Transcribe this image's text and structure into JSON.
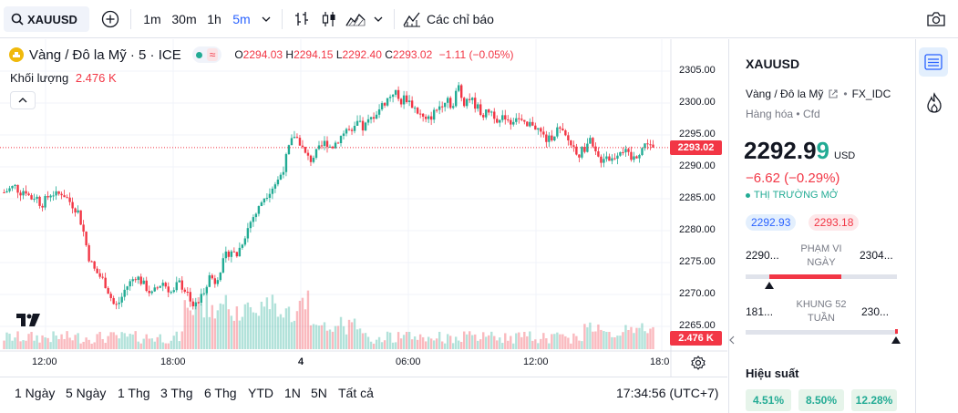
{
  "toolbar": {
    "symbol": "XAUUSD",
    "intervals": [
      "1m",
      "30m",
      "1h",
      "5m"
    ],
    "indicators_label": "Các chỉ báo"
  },
  "legend": {
    "name": "Vàng / Đô la Mỹ · 5 · ICE",
    "o_label": "O",
    "o": "2294.03",
    "h_label": "H",
    "h": "2294.15",
    "l_label": "L",
    "l": "2292.40",
    "c_label": "C",
    "c": "2293.02",
    "change": "−1.11 (−0.05%)",
    "volume_label": "Khối lượng",
    "volume": "2.476 K"
  },
  "price_axis": {
    "ticks": [
      "2305.00",
      "2300.00",
      "2295.00",
      "2290.00",
      "2285.00",
      "2280.00",
      "2275.00",
      "2270.00",
      "2265.00"
    ],
    "last_price": "2293.02",
    "volume_tag": "2.476 K"
  },
  "time_axis": {
    "ticks": [
      "12:00",
      "18:00",
      "4",
      "06:00",
      "12:00",
      "18:0"
    ]
  },
  "ranges": [
    "1 Ngày",
    "5 Ngày",
    "1 Thg",
    "3 Thg",
    "6 Thg",
    "YTD",
    "1N",
    "5N",
    "Tất cả"
  ],
  "clock": "17:34:56 (UTC+7)",
  "detail": {
    "symbol": "XAUUSD",
    "name": "Vàng / Đô la Mỹ",
    "exchange": "FX_IDC",
    "category": "Hàng hóa",
    "type": "Cfd",
    "price_main": "2292.9",
    "price_last": "9",
    "currency": "USD",
    "change": "−6.62 (−0.29%)",
    "market_status": "THỊ TRƯỜNG MỞ",
    "bid": "2292.93",
    "ask": "2293.18",
    "day_low": "2290...",
    "day_label1": "PHẠM VI",
    "day_label2": "NGÀY",
    "day_high": "2304...",
    "wk_low": "181...",
    "wk_label1": "KHUNG 52",
    "wk_label2": "TUẦN",
    "wk_high": "230...",
    "performance_title": "Hiệu suất",
    "perf": [
      "4.51%",
      "8.50%",
      "12.28%"
    ]
  },
  "colors": {
    "up": "#22ab94",
    "down": "#f23645",
    "accent": "#2962ff"
  },
  "chart_data": {
    "type": "candlestick",
    "x_ticks": [
      "12:00",
      "18:00",
      "4",
      "06:00",
      "12:00",
      "18:0"
    ],
    "ylim": [
      2263,
      2307
    ],
    "close_path": [
      2286,
      2286.5,
      2287,
      2286,
      2286.5,
      2285,
      2285.5,
      2284,
      2285,
      2286,
      2285.5,
      2286,
      2285,
      2284,
      2283,
      2280,
      2276,
      2274,
      2273,
      2272,
      2270,
      2268,
      2269,
      2271,
      2272,
      2273,
      2272,
      2271,
      2270,
      2271,
      2272,
      2271,
      2270,
      2272,
      2271,
      2270,
      2268,
      2269,
      2271,
      2273,
      2272,
      2274,
      2276,
      2277,
      2276,
      2278,
      2280,
      2282,
      2283,
      2285,
      2286,
      2287,
      2288,
      2290,
      2293,
      2295,
      2294,
      2292,
      2291,
      2292,
      2293,
      2294,
      2293,
      2294,
      2295,
      2296,
      2295,
      2297,
      2296,
      2297,
      2298,
      2299,
      2300,
      2301,
      2302,
      2300,
      2301,
      2300,
      2299,
      2298,
      2297,
      2298,
      2299,
      2300,
      2301,
      2299,
      2303,
      2300,
      2301,
      2300,
      2299,
      2298,
      2299,
      2298,
      2297,
      2298,
      2297,
      2298,
      2297,
      2296,
      2297,
      2296,
      2295,
      2294,
      2295,
      2296,
      2295,
      2294,
      2293,
      2292,
      2293,
      2294,
      2292,
      2291,
      2292,
      2291,
      2292,
      2293,
      2292,
      2291,
      2292,
      2293,
      2294,
      2293.02
    ]
  }
}
